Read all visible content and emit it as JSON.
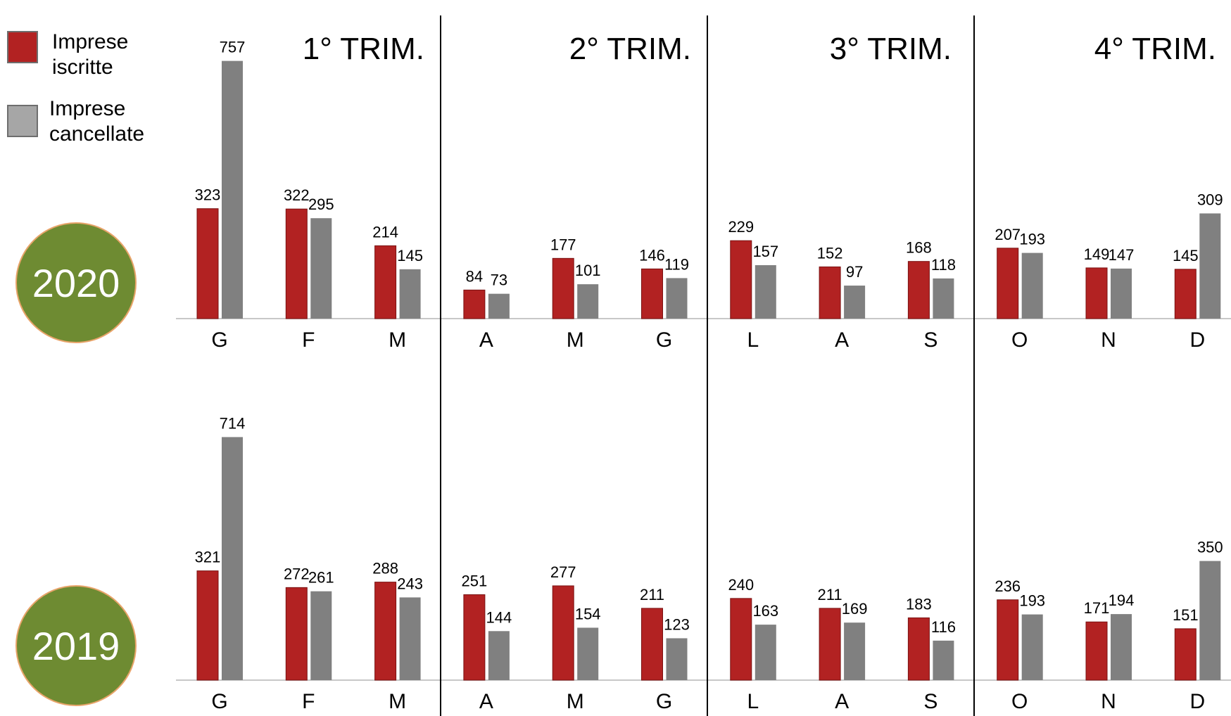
{
  "legend": {
    "items": [
      {
        "line1": "Imprese",
        "line2": "iscritte",
        "color": "#b22222"
      },
      {
        "line1": "Imprese",
        "line2": "cancellate",
        "color": "#a6a6a6"
      }
    ]
  },
  "badges": [
    {
      "label": "2020",
      "color": "#6e8b32"
    },
    {
      "label": "2019",
      "color": "#6e8b32"
    }
  ],
  "chart_data": {
    "type": "bar",
    "quarters": [
      "1° TRIM.",
      "2° TRIM.",
      "3° TRIM.",
      "4° TRIM."
    ],
    "categories": [
      "G",
      "F",
      "M",
      "A",
      "M",
      "G",
      "L",
      "A",
      "S",
      "O",
      "N",
      "D"
    ],
    "colors": {
      "iscritte": "#b22222",
      "cancellate": "#808080"
    },
    "panels": [
      {
        "year": "2020",
        "series": [
          {
            "name": "Imprese iscritte",
            "values": [
              323,
              322,
              214,
              84,
              177,
              146,
              229,
              152,
              168,
              207,
              149,
              145
            ]
          },
          {
            "name": "Imprese cancellate",
            "values": [
              757,
              295,
              145,
              73,
              101,
              119,
              157,
              97,
              118,
              193,
              147,
              309
            ]
          }
        ]
      },
      {
        "year": "2019",
        "series": [
          {
            "name": "Imprese iscritte",
            "values": [
              321,
              272,
              288,
              251,
              277,
              211,
              240,
              211,
              183,
              236,
              171,
              151
            ]
          },
          {
            "name": "Imprese cancellate",
            "values": [
              714,
              261,
              243,
              144,
              154,
              123,
              163,
              169,
              116,
              193,
              194,
              350
            ]
          }
        ]
      }
    ]
  }
}
